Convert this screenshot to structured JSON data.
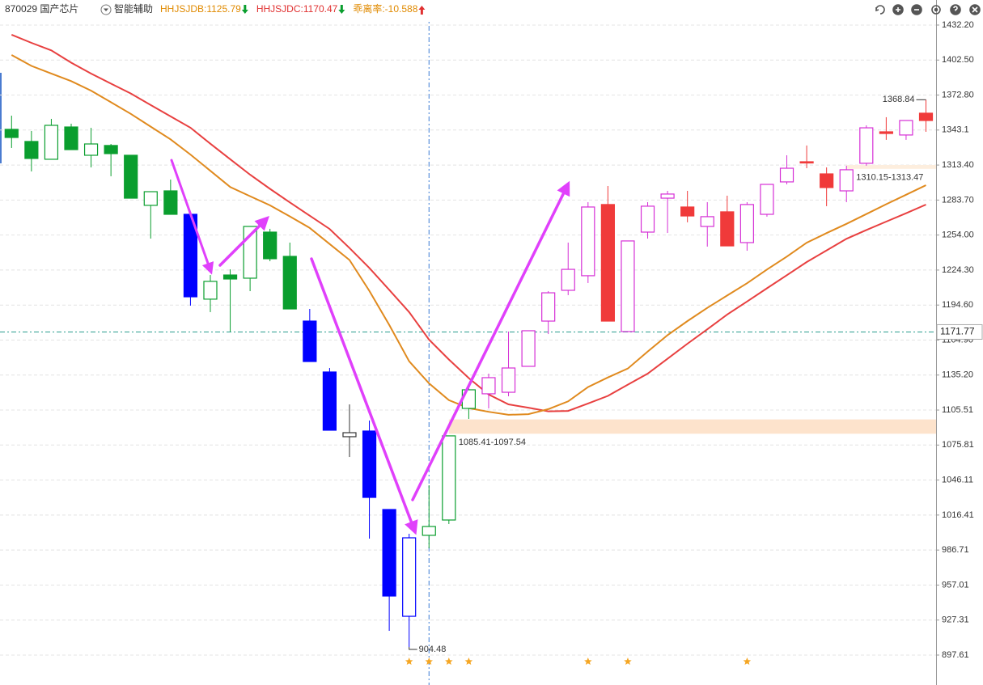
{
  "header": {
    "symbol": "870029 国产芯片",
    "indicator_menu": "智能辅助",
    "indicators": [
      {
        "text": "HHJSJDB:1125.79",
        "color": "#e08a00",
        "arrow_color": "#0a9e2e"
      },
      {
        "text": "HHJSJDC:1170.47",
        "color": "#e03030",
        "arrow_color": "#0a9e2e"
      },
      {
        "text": "乖离率:-10.588",
        "color": "#e08a00",
        "arrow_color": "#e03030"
      }
    ]
  },
  "chart_data": {
    "type": "candlestick",
    "open": [
      1343.7,
      1333.4,
      1318.3,
      1345.7,
      1321.7,
      1330.0,
      1321.7,
      1279.2,
      1291.5,
      1271.6,
      1199.6,
      1220.1,
      1217.4,
      1256.5,
      1235.9,
      1181.0,
      1137.8,
      1082.9,
      1087.7,
      1021.1,
      930.5,
      999.2,
      1012.2,
      1106.9,
      1119.3,
      1120.6,
      1142.6,
      1181.0,
      1207.1,
      1219.5,
      1279.9,
      1172.1,
      1256.5,
      1285.3,
      1277.8,
      1261.3,
      1273.7,
      1247.6,
      1271.6,
      1299.1,
      1316.2,
      1305.9,
      1291.5,
      1314.9,
      1341.6,
      1338.9,
      1357.4
    ],
    "high": [
      1355.3,
      1342.3,
      1352.6,
      1348.5,
      1345.0,
      1331.3,
      1321.7,
      1290.8,
      1301.1,
      1271.6,
      1220.1,
      1224.9,
      1261.3,
      1259.3,
      1247.6,
      1191.3,
      1141.2,
      1110.3,
      1096.6,
      1021.1,
      1000.5,
      1041.7,
      1083.6,
      1125.4,
      1136.4,
      1172.1,
      1172.8,
      1206.4,
      1247.6,
      1281.9,
      1295.6,
      1249.0,
      1281.9,
      1291.5,
      1291.5,
      1281.9,
      1287.4,
      1281.9,
      1297.0,
      1321.7,
      1330.0,
      1311.4,
      1312.8,
      1347.1,
      1354.0,
      1351.2,
      1368.84
    ],
    "low": [
      1327.9,
      1308.0,
      1318.3,
      1326.5,
      1311.4,
      1303.9,
      1285.3,
      1251.0,
      1271.6,
      1194.1,
      1188.6,
      1172.1,
      1206.4,
      1231.8,
      1191.3,
      1146.7,
      1088.4,
      1065.7,
      996.4,
      918.2,
      904.48,
      988.2,
      1008.8,
      1098.0,
      1106.9,
      1117.2,
      1142.6,
      1170.0,
      1203.0,
      1213.3,
      1181.0,
      1172.1,
      1251.0,
      1255.8,
      1264.8,
      1244.2,
      1244.8,
      1240.7,
      1269.6,
      1297.0,
      1310.7,
      1278.5,
      1281.9,
      1312.8,
      1334.8,
      1334.8,
      1341.6
    ],
    "close": [
      1336.8,
      1319.0,
      1347.1,
      1326.5,
      1331.3,
      1323.1,
      1285.3,
      1290.8,
      1271.6,
      1201.6,
      1214.7,
      1216.7,
      1261.3,
      1233.9,
      1191.3,
      1146.7,
      1088.4,
      1086.3,
      1031.4,
      947.7,
      997.1,
      1006.7,
      1083.6,
      1122.7,
      1133.0,
      1141.2,
      1172.8,
      1205.0,
      1224.9,
      1277.8,
      1181.0,
      1249.0,
      1278.5,
      1288.8,
      1270.2,
      1269.6,
      1244.8,
      1279.9,
      1297.0,
      1310.7,
      1315.5,
      1294.3,
      1309.4,
      1345.0,
      1340.2,
      1351.2,
      1351.2
    ],
    "colors": [
      "#0a9e2e",
      "#0a9e2e",
      "#0a9e2e",
      "#0a9e2e",
      "#0a9e2e",
      "#0a9e2e",
      "#0a9e2e",
      "#0a9e2e",
      "#0a9e2e",
      "#0000ff",
      "#0a9e2e",
      "#0a9e2e",
      "#0a9e2e",
      "#0a9e2e",
      "#0a9e2e",
      "#0000ff",
      "#0000ff",
      "#333333",
      "#0000ff",
      "#0000ff",
      "#0000ff",
      "#0a9e2e",
      "#0a9e2e",
      "#0a9e2e",
      "#d62fd6",
      "#d62fd6",
      "#d62fd6",
      "#d62fd6",
      "#d62fd6",
      "#d62fd6",
      "#f03a3a",
      "#d62fd6",
      "#d62fd6",
      "#d62fd6",
      "#f03a3a",
      "#d62fd6",
      "#f03a3a",
      "#d62fd6",
      "#d62fd6",
      "#d62fd6",
      "#f03a3a",
      "#f03a3a",
      "#d62fd6",
      "#d62fd6",
      "#f03a3a",
      "#d62fd6",
      "#f03a3a"
    ],
    "lines": [
      {
        "color": "#e84040",
        "values": [
          1424.0,
          1417.1,
          1410.7,
          1400.3,
          1391.0,
          1382.5,
          1374.1,
          1364.3,
          1354.7,
          1345.1,
          1331.5,
          1318.3,
          1305.2,
          1293.2,
          1281.7,
          1270.4,
          1259.2,
          1243.0,
          1226.1,
          1207.5,
          1188.6,
          1165.2,
          1148.4,
          1132.6,
          1118.7,
          1110.3,
          1107.5,
          1104.4,
          1104.8,
          1111.1,
          1117.5,
          1127.1,
          1136.4,
          1149.0,
          1161.8,
          1174.0,
          1186.6,
          1197.6,
          1208.8,
          1219.9,
          1231.1,
          1241.0,
          1250.8,
          1258.3,
          1265.4,
          1272.5,
          1279.8
        ]
      },
      {
        "color": "#e08a1e",
        "values": [
          1406.8,
          1397.5,
          1391.1,
          1384.6,
          1376.5,
          1366.7,
          1356.8,
          1346.0,
          1335.2,
          1322.3,
          1308.5,
          1294.7,
          1287.0,
          1279.2,
          1269.8,
          1260.1,
          1246.4,
          1232.8,
          1206.7,
          1177.7,
          1146.9,
          1128.2,
          1113.9,
          1107.2,
          1104.0,
          1101.5,
          1102.0,
          1106.3,
          1112.9,
          1125.0,
          1133.2,
          1140.7,
          1155.1,
          1169.1,
          1181.0,
          1192.2,
          1202.7,
          1213.1,
          1224.7,
          1235.7,
          1247.5,
          1255.7,
          1263.5,
          1271.8,
          1280.2,
          1288.2,
          1296.3
        ]
      }
    ],
    "ylim": [
      872.2,
      1441.1
    ],
    "yticks": [
      {
        "value": 1432.2,
        "label": "1432.20"
      },
      {
        "value": 1402.5,
        "label": "1402.50"
      },
      {
        "value": 1372.8,
        "label": "1372.80"
      },
      1343.1,
      {
        "value": 1313.4,
        "label": "1313.40"
      },
      {
        "value": 1283.7,
        "label": "1283.70"
      },
      {
        "value": 1254.0,
        "label": "1254.00"
      },
      {
        "value": 1224.3,
        "label": "1224.30"
      },
      {
        "value": 1194.6,
        "label": "1194.60"
      },
      {
        "value": 1164.9,
        "label": "1164.90"
      },
      {
        "value": 1135.2,
        "label": "1135.20"
      },
      1105.51,
      1075.81,
      1046.11,
      1016.41,
      986.71,
      957.01,
      927.31,
      897.61
    ],
    "grid": true,
    "crosshair": {
      "value": 1171.77,
      "index": 21,
      "color": "#2a9d8f"
    },
    "zones": [
      {
        "from": 1085.41,
        "to": 1097.54,
        "start_index": 22,
        "label": "1085.41-1097.54",
        "color": "#fde3cc"
      },
      {
        "from": 1310.15,
        "to": 1313.47,
        "start_index": 42,
        "label": "1310.15-1313.47",
        "color": "#fdeede"
      }
    ],
    "extreme_labels": {
      "low_index": 20,
      "high_index": 46
    },
    "signal_indices": [
      20,
      21,
      22,
      23,
      29,
      31,
      37
    ],
    "signal_color": "#f5a623"
  }
}
